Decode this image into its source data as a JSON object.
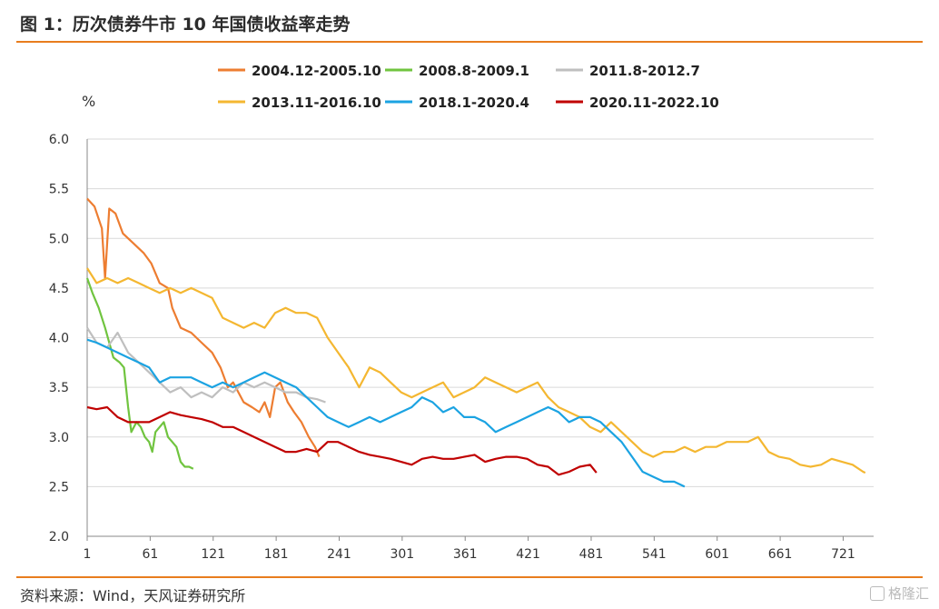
{
  "header": {
    "title": "图 1：历次债券牛市 10 年国债收益率走势"
  },
  "footer": {
    "source": "资料来源：Wind，天风证券研究所",
    "watermark": "格隆汇"
  },
  "chart_data": {
    "type": "line",
    "ylabel": "%",
    "xlabel": "",
    "xlim": [
      1,
      750
    ],
    "ylim": [
      2.0,
      6.0
    ],
    "y_ticks": [
      "2.0",
      "2.5",
      "3.0",
      "3.5",
      "4.0",
      "4.5",
      "5.0",
      "5.5",
      "6.0"
    ],
    "x_ticks": [
      "1",
      "61",
      "121",
      "181",
      "241",
      "301",
      "361",
      "421",
      "481",
      "541",
      "601",
      "661",
      "721"
    ],
    "grid": "horizontal",
    "legend_position": "top",
    "series": [
      {
        "name": "2004.12-2005.10",
        "color": "#ed7d31",
        "points": [
          [
            1,
            5.4
          ],
          [
            8,
            5.32
          ],
          [
            15,
            5.1
          ],
          [
            18,
            4.6
          ],
          [
            22,
            5.3
          ],
          [
            28,
            5.25
          ],
          [
            35,
            5.05
          ],
          [
            45,
            4.95
          ],
          [
            55,
            4.85
          ],
          [
            62,
            4.75
          ],
          [
            70,
            4.55
          ],
          [
            78,
            4.5
          ],
          [
            82,
            4.3
          ],
          [
            90,
            4.1
          ],
          [
            100,
            4.05
          ],
          [
            110,
            3.95
          ],
          [
            120,
            3.85
          ],
          [
            128,
            3.7
          ],
          [
            135,
            3.5
          ],
          [
            140,
            3.55
          ],
          [
            145,
            3.45
          ],
          [
            150,
            3.35
          ],
          [
            158,
            3.3
          ],
          [
            165,
            3.25
          ],
          [
            170,
            3.35
          ],
          [
            175,
            3.2
          ],
          [
            180,
            3.5
          ],
          [
            185,
            3.55
          ],
          [
            192,
            3.35
          ],
          [
            198,
            3.25
          ],
          [
            205,
            3.15
          ],
          [
            212,
            3.0
          ],
          [
            218,
            2.9
          ],
          [
            222,
            2.8
          ]
        ]
      },
      {
        "name": "2008.8-2009.1",
        "color": "#70c43f",
        "points": [
          [
            1,
            4.6
          ],
          [
            6,
            4.45
          ],
          [
            12,
            4.3
          ],
          [
            18,
            4.1
          ],
          [
            22,
            3.95
          ],
          [
            26,
            3.8
          ],
          [
            32,
            3.75
          ],
          [
            36,
            3.7
          ],
          [
            40,
            3.3
          ],
          [
            43,
            3.05
          ],
          [
            48,
            3.15
          ],
          [
            52,
            3.1
          ],
          [
            56,
            3.0
          ],
          [
            60,
            2.95
          ],
          [
            63,
            2.85
          ],
          [
            66,
            3.05
          ],
          [
            70,
            3.1
          ],
          [
            74,
            3.15
          ],
          [
            78,
            3.0
          ],
          [
            82,
            2.95
          ],
          [
            86,
            2.9
          ],
          [
            90,
            2.75
          ],
          [
            94,
            2.7
          ],
          [
            98,
            2.7
          ],
          [
            102,
            2.68
          ]
        ]
      },
      {
        "name": "2011.8-2012.7",
        "color": "#bfbfbf",
        "points": [
          [
            1,
            4.1
          ],
          [
            10,
            3.95
          ],
          [
            20,
            3.9
          ],
          [
            30,
            4.05
          ],
          [
            40,
            3.85
          ],
          [
            50,
            3.75
          ],
          [
            60,
            3.65
          ],
          [
            70,
            3.55
          ],
          [
            80,
            3.45
          ],
          [
            90,
            3.5
          ],
          [
            100,
            3.4
          ],
          [
            110,
            3.45
          ],
          [
            120,
            3.4
          ],
          [
            130,
            3.5
          ],
          [
            140,
            3.45
          ],
          [
            150,
            3.55
          ],
          [
            160,
            3.5
          ],
          [
            170,
            3.55
          ],
          [
            180,
            3.5
          ],
          [
            190,
            3.45
          ],
          [
            200,
            3.45
          ],
          [
            210,
            3.4
          ],
          [
            220,
            3.38
          ],
          [
            228,
            3.35
          ]
        ]
      },
      {
        "name": "2013.11-2016.10",
        "color": "#f4b731",
        "points": [
          [
            1,
            4.7
          ],
          [
            10,
            4.55
          ],
          [
            20,
            4.6
          ],
          [
            30,
            4.55
          ],
          [
            40,
            4.6
          ],
          [
            50,
            4.55
          ],
          [
            60,
            4.5
          ],
          [
            70,
            4.45
          ],
          [
            80,
            4.5
          ],
          [
            90,
            4.45
          ],
          [
            100,
            4.5
          ],
          [
            110,
            4.45
          ],
          [
            120,
            4.4
          ],
          [
            130,
            4.2
          ],
          [
            140,
            4.15
          ],
          [
            150,
            4.1
          ],
          [
            160,
            4.15
          ],
          [
            170,
            4.1
          ],
          [
            180,
            4.25
          ],
          [
            190,
            4.3
          ],
          [
            200,
            4.25
          ],
          [
            210,
            4.25
          ],
          [
            220,
            4.2
          ],
          [
            230,
            4.0
          ],
          [
            240,
            3.85
          ],
          [
            250,
            3.7
          ],
          [
            260,
            3.5
          ],
          [
            270,
            3.7
          ],
          [
            280,
            3.65
          ],
          [
            290,
            3.55
          ],
          [
            300,
            3.45
          ],
          [
            310,
            3.4
          ],
          [
            320,
            3.45
          ],
          [
            330,
            3.5
          ],
          [
            340,
            3.55
          ],
          [
            350,
            3.4
          ],
          [
            360,
            3.45
          ],
          [
            370,
            3.5
          ],
          [
            380,
            3.6
          ],
          [
            390,
            3.55
          ],
          [
            400,
            3.5
          ],
          [
            410,
            3.45
          ],
          [
            420,
            3.5
          ],
          [
            430,
            3.55
          ],
          [
            440,
            3.4
          ],
          [
            450,
            3.3
          ],
          [
            460,
            3.25
          ],
          [
            470,
            3.2
          ],
          [
            480,
            3.1
          ],
          [
            490,
            3.05
          ],
          [
            500,
            3.15
          ],
          [
            510,
            3.05
          ],
          [
            520,
            2.95
          ],
          [
            530,
            2.85
          ],
          [
            540,
            2.8
          ],
          [
            550,
            2.85
          ],
          [
            560,
            2.85
          ],
          [
            570,
            2.9
          ],
          [
            580,
            2.85
          ],
          [
            590,
            2.9
          ],
          [
            600,
            2.9
          ],
          [
            610,
            2.95
          ],
          [
            620,
            2.95
          ],
          [
            630,
            2.95
          ],
          [
            640,
            3.0
          ],
          [
            650,
            2.85
          ],
          [
            660,
            2.8
          ],
          [
            670,
            2.78
          ],
          [
            680,
            2.72
          ],
          [
            690,
            2.7
          ],
          [
            700,
            2.72
          ],
          [
            710,
            2.78
          ],
          [
            720,
            2.75
          ],
          [
            730,
            2.72
          ],
          [
            740,
            2.65
          ],
          [
            742,
            2.64
          ]
        ]
      },
      {
        "name": "2018.1-2020.4",
        "color": "#1ba3e2",
        "points": [
          [
            1,
            3.98
          ],
          [
            10,
            3.95
          ],
          [
            20,
            3.9
          ],
          [
            30,
            3.85
          ],
          [
            40,
            3.8
          ],
          [
            50,
            3.75
          ],
          [
            60,
            3.7
          ],
          [
            70,
            3.55
          ],
          [
            80,
            3.6
          ],
          [
            90,
            3.6
          ],
          [
            100,
            3.6
          ],
          [
            110,
            3.55
          ],
          [
            120,
            3.5
          ],
          [
            130,
            3.55
          ],
          [
            140,
            3.5
          ],
          [
            150,
            3.55
          ],
          [
            160,
            3.6
          ],
          [
            170,
            3.65
          ],
          [
            180,
            3.6
          ],
          [
            190,
            3.55
          ],
          [
            200,
            3.5
          ],
          [
            210,
            3.4
          ],
          [
            220,
            3.3
          ],
          [
            230,
            3.2
          ],
          [
            240,
            3.15
          ],
          [
            250,
            3.1
          ],
          [
            260,
            3.15
          ],
          [
            270,
            3.2
          ],
          [
            280,
            3.15
          ],
          [
            290,
            3.2
          ],
          [
            300,
            3.25
          ],
          [
            310,
            3.3
          ],
          [
            320,
            3.4
          ],
          [
            330,
            3.35
          ],
          [
            340,
            3.25
          ],
          [
            350,
            3.3
          ],
          [
            360,
            3.2
          ],
          [
            370,
            3.2
          ],
          [
            380,
            3.15
          ],
          [
            390,
            3.05
          ],
          [
            400,
            3.1
          ],
          [
            410,
            3.15
          ],
          [
            420,
            3.2
          ],
          [
            430,
            3.25
          ],
          [
            440,
            3.3
          ],
          [
            450,
            3.25
          ],
          [
            460,
            3.15
          ],
          [
            470,
            3.2
          ],
          [
            480,
            3.2
          ],
          [
            490,
            3.15
          ],
          [
            500,
            3.05
          ],
          [
            510,
            2.95
          ],
          [
            520,
            2.8
          ],
          [
            530,
            2.65
          ],
          [
            540,
            2.6
          ],
          [
            550,
            2.55
          ],
          [
            560,
            2.55
          ],
          [
            570,
            2.5
          ]
        ]
      },
      {
        "name": "2020.11-2022.10",
        "color": "#c00000",
        "points": [
          [
            1,
            3.3
          ],
          [
            10,
            3.28
          ],
          [
            20,
            3.3
          ],
          [
            30,
            3.2
          ],
          [
            40,
            3.15
          ],
          [
            50,
            3.15
          ],
          [
            60,
            3.15
          ],
          [
            70,
            3.2
          ],
          [
            80,
            3.25
          ],
          [
            90,
            3.22
          ],
          [
            100,
            3.2
          ],
          [
            110,
            3.18
          ],
          [
            120,
            3.15
          ],
          [
            130,
            3.1
          ],
          [
            140,
            3.1
          ],
          [
            150,
            3.05
          ],
          [
            160,
            3.0
          ],
          [
            170,
            2.95
          ],
          [
            180,
            2.9
          ],
          [
            190,
            2.85
          ],
          [
            200,
            2.85
          ],
          [
            210,
            2.88
          ],
          [
            220,
            2.85
          ],
          [
            230,
            2.95
          ],
          [
            240,
            2.95
          ],
          [
            250,
            2.9
          ],
          [
            260,
            2.85
          ],
          [
            270,
            2.82
          ],
          [
            280,
            2.8
          ],
          [
            290,
            2.78
          ],
          [
            300,
            2.75
          ],
          [
            310,
            2.72
          ],
          [
            320,
            2.78
          ],
          [
            330,
            2.8
          ],
          [
            340,
            2.78
          ],
          [
            350,
            2.78
          ],
          [
            360,
            2.8
          ],
          [
            370,
            2.82
          ],
          [
            380,
            2.75
          ],
          [
            390,
            2.78
          ],
          [
            400,
            2.8
          ],
          [
            410,
            2.8
          ],
          [
            420,
            2.78
          ],
          [
            430,
            2.72
          ],
          [
            440,
            2.7
          ],
          [
            450,
            2.62
          ],
          [
            460,
            2.65
          ],
          [
            470,
            2.7
          ],
          [
            480,
            2.72
          ],
          [
            486,
            2.64
          ]
        ]
      }
    ]
  }
}
